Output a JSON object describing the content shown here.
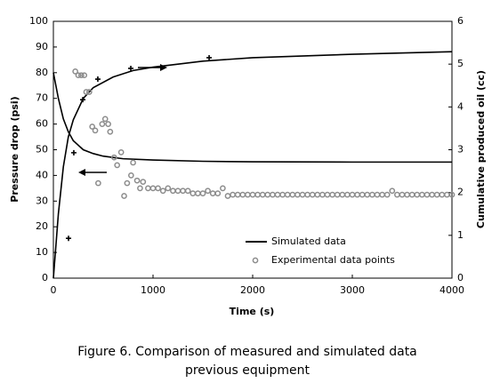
{
  "chart_data": {
    "type": "line",
    "xlabel": "Time (s)",
    "ylabel": "Pressure drop (psi)",
    "y2label": "Cumulative produced oil (cc)",
    "caption": [
      "Figure 6. Comparison of measured and simulated data",
      "previous equipment"
    ],
    "xlim": [
      0,
      4000
    ],
    "xticks": [
      0,
      1000,
      2000,
      3000,
      4000
    ],
    "ylim": [
      0,
      100
    ],
    "yticks": [
      0,
      10,
      20,
      30,
      40,
      50,
      60,
      70,
      80,
      90,
      100
    ],
    "y2lim": [
      0,
      6
    ],
    "y2ticks": [
      0,
      1,
      2,
      3,
      4,
      5,
      6
    ],
    "series": [
      {
        "name": "Simulated data",
        "kind": "line",
        "color": "#000000",
        "x": [
          0,
          50,
          100,
          150,
          200,
          300,
          400,
          500,
          700,
          1000,
          1500,
          2000,
          3000,
          4000
        ],
        "values": [
          80,
          70,
          62,
          57,
          53.5,
          50,
          48.5,
          47.5,
          46.5,
          46,
          45.5,
          45.3,
          45.2,
          45.2
        ]
      },
      {
        "kind": "line",
        "axis": "y2",
        "color": "#000000",
        "x": [
          0,
          50,
          100,
          150,
          200,
          300,
          400,
          600,
          800,
          1000,
          1500,
          2000,
          3000,
          4000
        ],
        "values": [
          0,
          1.5,
          2.6,
          3.3,
          3.7,
          4.2,
          4.45,
          4.7,
          4.85,
          4.93,
          5.07,
          5.15,
          5.23,
          5.29
        ]
      },
      {
        "name": "Experimental data points",
        "kind": "circle",
        "color": "#8c8c8c",
        "x": [
          220,
          250,
          280,
          310,
          330,
          360,
          390,
          420,
          450,
          490,
          520,
          550,
          570,
          610,
          640,
          680,
          710,
          740,
          780,
          800,
          840,
          870,
          900,
          950,
          1000,
          1050,
          1100,
          1150,
          1200,
          1250,
          1300,
          1350,
          1400,
          1450,
          1500,
          1550,
          1600,
          1650,
          1700,
          1750,
          1800,
          1850,
          1900,
          1950,
          2000,
          2050,
          2100,
          2150,
          2200,
          2250,
          2300,
          2350,
          2400,
          2450,
          2500,
          2550,
          2600,
          2650,
          2700,
          2750,
          2800,
          2850,
          2900,
          2950,
          3000,
          3050,
          3100,
          3150,
          3200,
          3250,
          3300,
          3350,
          3400,
          3450,
          3500,
          3550,
          3600,
          3650,
          3700,
          3750,
          3800,
          3850,
          3900,
          3950,
          4000
        ],
        "values": [
          80.5,
          79,
          79,
          79,
          72.5,
          72.5,
          59,
          57.5,
          37,
          60,
          62,
          60,
          57,
          47,
          44,
          49,
          32,
          37,
          40,
          45,
          38,
          35,
          37.5,
          35,
          35,
          35,
          34,
          35,
          34,
          34,
          34,
          34,
          33,
          33,
          33,
          34,
          33,
          33,
          35,
          32,
          32.5,
          32.5,
          32.5,
          32.5,
          32.5,
          32.5,
          32.5,
          32.5,
          32.5,
          32.5,
          32.5,
          32.5,
          32.5,
          32.5,
          32.5,
          32.5,
          32.5,
          32.5,
          32.5,
          32.5,
          32.5,
          32.5,
          32.5,
          32.5,
          32.5,
          32.5,
          32.5,
          32.5,
          32.5,
          32.5,
          32.5,
          32.5,
          34,
          32.5,
          32.5,
          32.5,
          32.5,
          32.5,
          32.5,
          32.5,
          32.5,
          32.5,
          32.5,
          32.5,
          32.5
        ]
      },
      {
        "kind": "plus",
        "axis": "y2",
        "color": "#000000",
        "x": [
          152,
          205,
          295,
          446,
          777,
          1563
        ],
        "values": [
          0.93,
          2.93,
          4.17,
          4.65,
          4.9,
          5.15
        ]
      }
    ]
  }
}
